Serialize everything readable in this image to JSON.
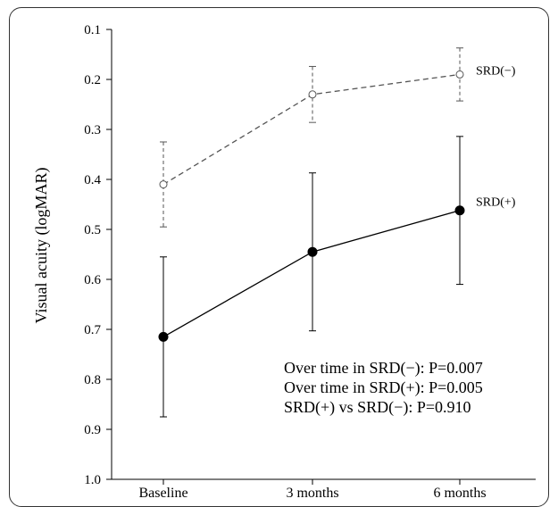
{
  "chart_data": {
    "type": "line",
    "ylabel": "Visual acuity (logMAR)",
    "ylim": [
      1.0,
      0.1
    ],
    "y_inverted": true,
    "yticks": [
      "0.1",
      "0.2",
      "0.3",
      "0.4",
      "0.5",
      "0.6",
      "0.7",
      "0.8",
      "0.9",
      "1.0"
    ],
    "categories": [
      "Baseline",
      "3 months",
      "6 months"
    ],
    "series": [
      {
        "name": "SRD(−)",
        "values": [
          0.41,
          0.23,
          0.19
        ],
        "error": [
          0.085,
          0.056,
          0.053
        ],
        "style": "dashed",
        "marker": "open-circle",
        "color": "#555555"
      },
      {
        "name": "SRD(+)",
        "values": [
          0.715,
          0.545,
          0.462
        ],
        "error": [
          0.16,
          0.158,
          0.148
        ],
        "style": "solid",
        "marker": "filled-circle",
        "color": "#000000"
      }
    ],
    "annotations": [
      "Over time in SRD(−): P=0.007",
      "Over time in SRD(+): P=0.005",
      "SRD(+) vs SRD(−): P=0.910"
    ]
  }
}
